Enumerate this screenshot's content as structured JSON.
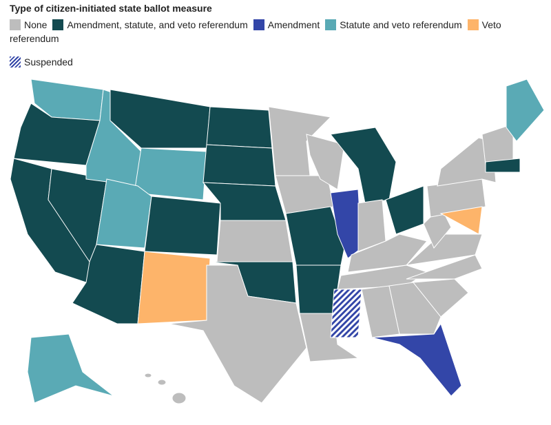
{
  "legend": {
    "title": "Type of citizen-initiated state ballot measure",
    "items": [
      {
        "label": "None",
        "color": "#bdbdbd"
      },
      {
        "label": "Amendment, statute, and veto referendum",
        "color": "#134a50"
      },
      {
        "label": "Amendment",
        "color": "#3346a8"
      },
      {
        "label": "Statute and veto referendum",
        "color": "#5aaab5"
      },
      {
        "label": "Veto referendum",
        "color": "#fdb46a"
      },
      {
        "label": "Suspended",
        "color": "#3346a8"
      }
    ]
  }
}
